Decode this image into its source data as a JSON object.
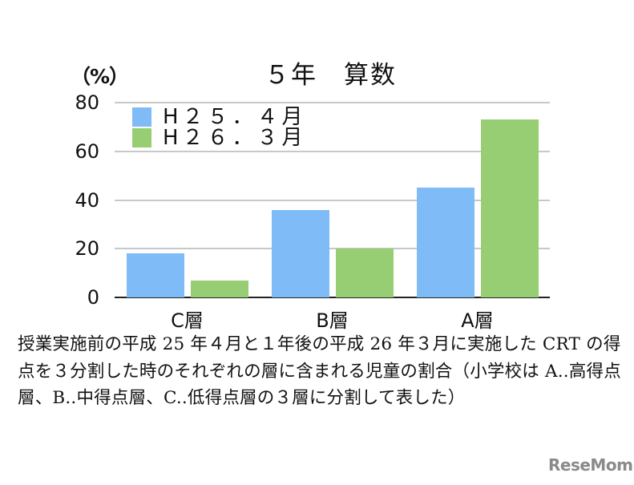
{
  "chart_data": {
    "type": "bar",
    "title": "５年　算数",
    "xlabel": "",
    "ylabel": "（%）",
    "ylim": [
      0,
      80
    ],
    "yticks": [
      0,
      20,
      40,
      60,
      80
    ],
    "grid": true,
    "legend_position": "top-left inside",
    "categories": [
      "C層",
      "B層",
      "A層"
    ],
    "series": [
      {
        "name": "H２５．４月",
        "color": "#7fbcf7",
        "values": [
          18,
          36,
          45
        ]
      },
      {
        "name": "H２６．３月",
        "color": "#98ce73",
        "values": [
          7,
          20,
          73
        ]
      }
    ]
  },
  "caption": "授業実施前の平成 25 年４月と１年後の平成 26 年３月に実施した CRT の得点を３分割した時のそれぞれの層に含まれる児童の割合（小学校は A..高得点層、B..中得点層、C..低得点層の３層に分割して表した）",
  "watermark": "ReseMom"
}
